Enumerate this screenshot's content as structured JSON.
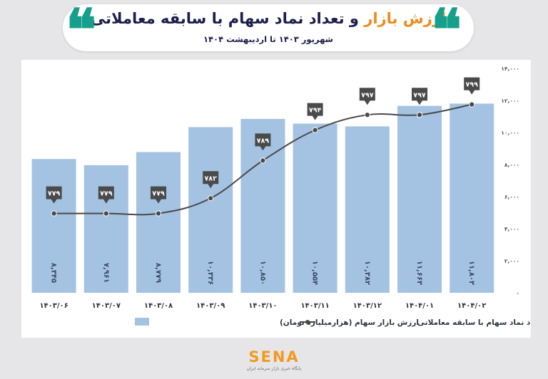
{
  "header": {
    "title_accent": "ارزش بازار",
    "title_rest": " و تعداد نماد سهام با سابقه معاملاتی",
    "subtitle": "شهریور ۱۴۰۳ تا اردیبهشت ۱۴۰۴",
    "quote_glyph": "❝"
  },
  "colors": {
    "bar": "#a4c3e2",
    "line": "#4a4a4a",
    "marker": "#4a4a4a",
    "accent": "#f08a1c",
    "quote": "#16a08c",
    "title": "#1b1f4a"
  },
  "chart_data": {
    "type": "bar",
    "categories": [
      "۱۴۰۳/۰۶",
      "۱۴۰۳/۰۷",
      "۱۴۰۳/۰۸",
      "۱۴۰۳/۰۹",
      "۱۴۰۳/۱۰",
      "۱۴۰۳/۱۱",
      "۱۴۰۳/۱۲",
      "۱۴۰۴/۰۱",
      "۱۴۰۴/۰۲"
    ],
    "series": [
      {
        "name": "ارزش بازار سهام (هزارمیلیارد تومان)",
        "kind": "bar",
        "values": [
          8345,
          7961,
          8779,
          10336,
          10850,
          10554,
          10382,
          11663,
          11803
        ],
        "value_labels": [
          "۸,۳۴۵",
          "۷,۹۶۱",
          "۸,۷۷۹",
          "۱۰,۳۳۶",
          "۱۰,۸۵۰",
          "۱۰,۵۵۴",
          "۱۰,۳۸۲",
          "۱۱,۶۶۳",
          "۱۱,۸۰۳"
        ]
      },
      {
        "name": "تعداد نماد سهام با سابقه معاملاتی",
        "kind": "line",
        "values": [
          779,
          779,
          779,
          782,
          789,
          794,
          797,
          797,
          799
        ],
        "value_labels": [
          "۷۷۹",
          "۷۷۹",
          "۷۷۹",
          "۷۸۲",
          "۷۸۹",
          "۷۹۴",
          "۷۹۷",
          "۷۹۷",
          "۷۹۹"
        ],
        "plot_positions": [
          4950,
          4950,
          4950,
          5900,
          8250,
          10150,
          11100,
          11100,
          11750
        ]
      }
    ],
    "y_axis": {
      "position": "right",
      "ylim": [
        0,
        14000
      ],
      "ticks": [
        0,
        2000,
        4000,
        6000,
        8000,
        10000,
        12000,
        14000
      ],
      "tick_labels": [
        "۰",
        "۲,۰۰۰",
        "۴,۰۰۰",
        "۶,۰۰۰",
        "۸,۰۰۰",
        "۱۰,۰۰۰",
        "۱۲,۰۰۰",
        "۱۴,۰۰۰"
      ]
    },
    "title": "",
    "xlabel": "",
    "ylabel": "",
    "grid": false,
    "legend": "bottom"
  },
  "footer": {
    "logo_text": "SENA",
    "logo_tagline": "پایگاه خبری بازار سرمایه ایران"
  }
}
